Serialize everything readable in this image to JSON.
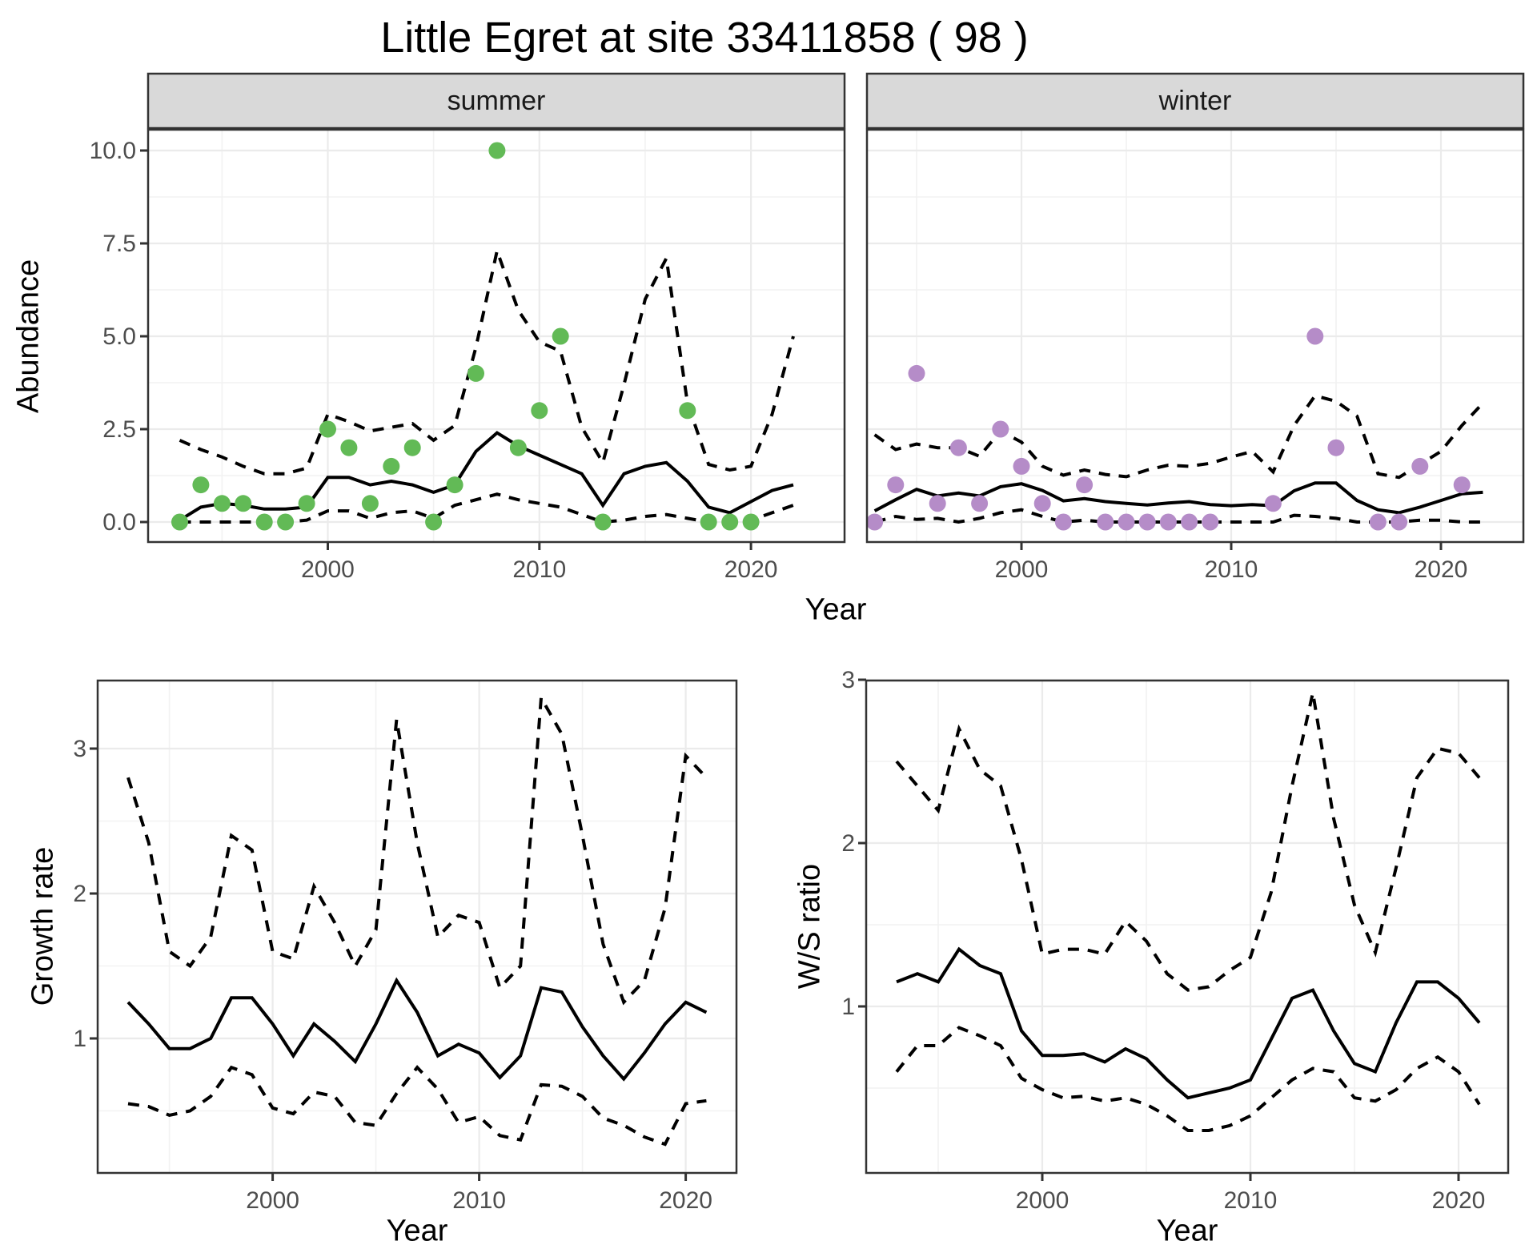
{
  "title": "Little Egret at site 33411858 ( 98 )",
  "colors": {
    "summer_point": "#62BA56",
    "winter_point": "#B58CC8",
    "line": "#000000",
    "strip_fill": "#D9D9D9",
    "panel_border": "#333333",
    "grid_major": "#EBEBEB",
    "grid_minor": "#F2F2F2",
    "tick_text": "#4D4D4D"
  },
  "chart_data": [
    {
      "id": "abundance-summer",
      "type": "line",
      "facet_label": "summer",
      "ylabel": "Abundance",
      "xlabel": "Year",
      "x": [
        1993,
        1994,
        1995,
        1996,
        1997,
        1998,
        1999,
        2000,
        2001,
        2002,
        2003,
        2004,
        2005,
        2006,
        2007,
        2008,
        2009,
        2010,
        2011,
        2012,
        2013,
        2014,
        2015,
        2016,
        2017,
        2018,
        2019,
        2020,
        2021,
        2022
      ],
      "points": [
        0,
        1,
        0.5,
        0.5,
        0,
        0,
        0.5,
        2.5,
        2,
        0.5,
        1.5,
        2,
        0,
        1,
        4,
        10,
        2,
        3,
        5,
        null,
        0,
        null,
        null,
        null,
        3,
        0,
        0,
        0,
        null,
        null
      ],
      "series": [
        {
          "name": "mean",
          "style": "solid",
          "values": [
            0.05,
            0.4,
            0.5,
            0.45,
            0.35,
            0.35,
            0.4,
            1.2,
            1.2,
            1.0,
            1.1,
            1.0,
            0.8,
            1.0,
            1.9,
            2.4,
            2.05,
            1.8,
            1.55,
            1.3,
            0.45,
            1.3,
            1.5,
            1.6,
            1.1,
            0.4,
            0.25,
            0.55,
            0.85,
            1.0
          ]
        },
        {
          "name": "ci_upper",
          "style": "dashed",
          "values": [
            2.2,
            1.95,
            1.75,
            1.5,
            1.3,
            1.3,
            1.45,
            2.9,
            2.7,
            2.45,
            2.55,
            2.65,
            2.2,
            2.6,
            4.7,
            7.3,
            5.7,
            4.85,
            4.6,
            2.55,
            1.6,
            3.7,
            6.0,
            7.1,
            3.2,
            1.55,
            1.4,
            1.5,
            2.9,
            5.0
          ]
        },
        {
          "name": "ci_lower",
          "style": "dashed",
          "values": [
            0,
            0,
            0,
            0,
            0,
            0,
            0.05,
            0.3,
            0.3,
            0.1,
            0.25,
            0.3,
            0.1,
            0.45,
            0.6,
            0.75,
            0.6,
            0.5,
            0.4,
            0.2,
            0,
            0.05,
            0.15,
            0.2,
            0.1,
            0,
            0,
            0.05,
            0.25,
            0.45
          ]
        }
      ],
      "yticks": {
        "values": [
          0,
          2.5,
          5,
          7.5,
          10
        ],
        "labels": [
          "0.0",
          "2.5",
          "5.0",
          "7.5",
          "10.0"
        ]
      },
      "yminor": [
        1.25,
        3.75,
        6.25,
        8.75
      ],
      "xticks": {
        "values": [
          2000,
          2010,
          2020
        ],
        "labels": [
          "2000",
          "2010",
          "2020"
        ]
      },
      "xminor": [
        1995,
        2005,
        2015
      ],
      "ylim": [
        -0.55,
        11.1
      ],
      "xlim": [
        1991.5,
        2024.4
      ],
      "grid": true,
      "legend": "none"
    },
    {
      "id": "abundance-winter",
      "type": "line",
      "facet_label": "winter",
      "ylabel": "Abundance",
      "xlabel": "Year",
      "x": [
        1993,
        1994,
        1995,
        1996,
        1997,
        1998,
        1999,
        2000,
        2001,
        2002,
        2003,
        2004,
        2005,
        2006,
        2007,
        2008,
        2009,
        2010,
        2011,
        2012,
        2013,
        2014,
        2015,
        2016,
        2017,
        2018,
        2019,
        2020,
        2021,
        2022
      ],
      "points": [
        0,
        1,
        4,
        0.5,
        2,
        0.5,
        2.5,
        1.5,
        0.5,
        0,
        1,
        0,
        0,
        0,
        0,
        0,
        0,
        null,
        null,
        0.5,
        null,
        5,
        2,
        null,
        0,
        0,
        1.5,
        null,
        1,
        null
      ],
      "series": [
        {
          "name": "mean",
          "style": "solid",
          "values": [
            0.3,
            0.6,
            0.88,
            0.7,
            0.78,
            0.7,
            0.95,
            1.03,
            0.85,
            0.57,
            0.63,
            0.55,
            0.5,
            0.46,
            0.51,
            0.55,
            0.47,
            0.44,
            0.47,
            0.44,
            0.84,
            1.05,
            1.05,
            0.58,
            0.33,
            0.25,
            0.4,
            0.58,
            0.76,
            0.8
          ]
        },
        {
          "name": "ci_upper",
          "style": "dashed",
          "values": [
            2.35,
            1.95,
            2.1,
            2.0,
            2.0,
            1.77,
            2.45,
            2.15,
            1.5,
            1.26,
            1.4,
            1.28,
            1.22,
            1.4,
            1.53,
            1.5,
            1.58,
            1.75,
            1.9,
            1.35,
            2.6,
            3.4,
            3.25,
            2.85,
            1.3,
            1.2,
            1.55,
            1.9,
            2.6,
            3.2
          ]
        },
        {
          "name": "ci_lower",
          "style": "dashed",
          "values": [
            0,
            0.15,
            0.07,
            0.1,
            0,
            0.1,
            0.25,
            0.33,
            0.15,
            0,
            0.05,
            0,
            0,
            0,
            0,
            0,
            0,
            0,
            0,
            0,
            0.18,
            0.15,
            0.1,
            0,
            0,
            0,
            0.05,
            0.05,
            0,
            0
          ]
        }
      ],
      "yticks": {
        "values": [
          0,
          2.5,
          5,
          7.5,
          10
        ],
        "labels": [
          "0.0",
          "2.5",
          "5.0",
          "7.5",
          "10.0"
        ]
      },
      "yminor": [
        1.25,
        3.75,
        6.25,
        8.75
      ],
      "xticks": {
        "values": [
          2000,
          2010,
          2020
        ],
        "labels": [
          "2000",
          "2010",
          "2020"
        ]
      },
      "xminor": [
        1995,
        2005,
        2015
      ],
      "ylim": [
        -0.55,
        11.1
      ],
      "xlim": [
        1991.6,
        2024.3
      ],
      "grid": true,
      "legend": "none"
    },
    {
      "id": "growth-rate",
      "type": "line",
      "facet_label": "",
      "ylabel": "Growth rate",
      "xlabel": "Year",
      "x": [
        1993,
        1994,
        1995,
        1996,
        1997,
        1998,
        1999,
        2000,
        2001,
        2002,
        2003,
        2004,
        2005,
        2006,
        2007,
        2008,
        2009,
        2010,
        2011,
        2012,
        2013,
        2014,
        2015,
        2016,
        2017,
        2018,
        2019,
        2020,
        2021
      ],
      "points": null,
      "series": [
        {
          "name": "mean",
          "style": "solid",
          "values": [
            1.25,
            1.1,
            0.93,
            0.93,
            1.0,
            1.28,
            1.28,
            1.1,
            0.88,
            1.1,
            0.98,
            0.84,
            1.1,
            1.4,
            1.18,
            0.88,
            0.96,
            0.9,
            0.73,
            0.88,
            1.35,
            1.32,
            1.08,
            0.88,
            0.72,
            0.9,
            1.1,
            1.25,
            1.18
          ]
        },
        {
          "name": "ci_upper",
          "style": "dashed",
          "values": [
            2.8,
            2.35,
            1.6,
            1.5,
            1.7,
            2.4,
            2.3,
            1.6,
            1.55,
            2.05,
            1.8,
            1.5,
            1.75,
            3.2,
            2.35,
            1.7,
            1.85,
            1.8,
            1.35,
            1.5,
            3.35,
            3.1,
            2.4,
            1.65,
            1.25,
            1.4,
            1.9,
            2.95,
            2.8
          ]
        },
        {
          "name": "ci_lower",
          "style": "dashed",
          "values": [
            0.55,
            0.53,
            0.47,
            0.5,
            0.6,
            0.8,
            0.75,
            0.52,
            0.48,
            0.63,
            0.6,
            0.42,
            0.4,
            0.62,
            0.8,
            0.65,
            0.42,
            0.46,
            0.33,
            0.3,
            0.68,
            0.67,
            0.6,
            0.45,
            0.4,
            0.32,
            0.27,
            0.55,
            0.57
          ]
        }
      ],
      "yticks": {
        "values": [
          1,
          2,
          3
        ],
        "labels": [
          "1",
          "2",
          "3"
        ]
      },
      "yminor": [
        0.5,
        1.5,
        2.5
      ],
      "xticks": {
        "values": [
          2000,
          2010,
          2020
        ],
        "labels": [
          "2000",
          "2010",
          "2020"
        ]
      },
      "xminor": [
        1995,
        2005,
        2015
      ],
      "ylim": [
        0.07,
        3.47
      ],
      "xlim": [
        1991.6,
        2022.5
      ],
      "grid": true,
      "legend": "none"
    },
    {
      "id": "ws-ratio",
      "type": "line",
      "facet_label": "",
      "ylabel": "W/S ratio",
      "xlabel": "Year",
      "x": [
        1993,
        1994,
        1995,
        1996,
        1997,
        1998,
        1999,
        2000,
        2001,
        2002,
        2003,
        2004,
        2005,
        2006,
        2007,
        2008,
        2009,
        2010,
        2011,
        2012,
        2013,
        2014,
        2015,
        2016,
        2017,
        2018,
        2019,
        2020,
        2021
      ],
      "points": null,
      "series": [
        {
          "name": "mean",
          "style": "solid",
          "values": [
            1.15,
            1.2,
            1.15,
            1.35,
            1.25,
            1.2,
            0.85,
            0.7,
            0.7,
            0.71,
            0.66,
            0.74,
            0.68,
            0.55,
            0.44,
            0.47,
            0.5,
            0.55,
            0.8,
            1.05,
            1.1,
            0.85,
            0.65,
            0.6,
            0.9,
            1.15,
            1.15,
            1.05,
            0.9
          ]
        },
        {
          "name": "ci_upper",
          "style": "dashed",
          "values": [
            2.5,
            2.35,
            2.2,
            2.7,
            2.45,
            2.35,
            1.9,
            1.32,
            1.35,
            1.35,
            1.32,
            1.52,
            1.4,
            1.2,
            1.1,
            1.12,
            1.22,
            1.3,
            1.7,
            2.35,
            2.92,
            2.15,
            1.62,
            1.33,
            1.85,
            2.4,
            2.58,
            2.55,
            2.4
          ]
        },
        {
          "name": "ci_lower",
          "style": "dashed",
          "values": [
            0.6,
            0.76,
            0.76,
            0.87,
            0.82,
            0.76,
            0.56,
            0.49,
            0.44,
            0.45,
            0.42,
            0.44,
            0.4,
            0.33,
            0.24,
            0.24,
            0.27,
            0.33,
            0.44,
            0.55,
            0.62,
            0.6,
            0.44,
            0.42,
            0.49,
            0.62,
            0.69,
            0.6,
            0.4
          ]
        }
      ],
      "yticks": {
        "values": [
          1,
          2,
          3
        ],
        "labels": [
          "1",
          "2",
          "3"
        ]
      },
      "yminor": [
        0.5,
        1.5,
        2.5
      ],
      "xticks": {
        "values": [
          2000,
          2010,
          2020
        ],
        "labels": [
          "2000",
          "2010",
          "2020"
        ]
      },
      "xminor": [
        1995,
        2005,
        2015
      ],
      "ylim": [
        0.0,
        3.0
      ],
      "xlim": [
        1991.5,
        2022.4
      ],
      "grid": true,
      "legend": "none"
    }
  ]
}
